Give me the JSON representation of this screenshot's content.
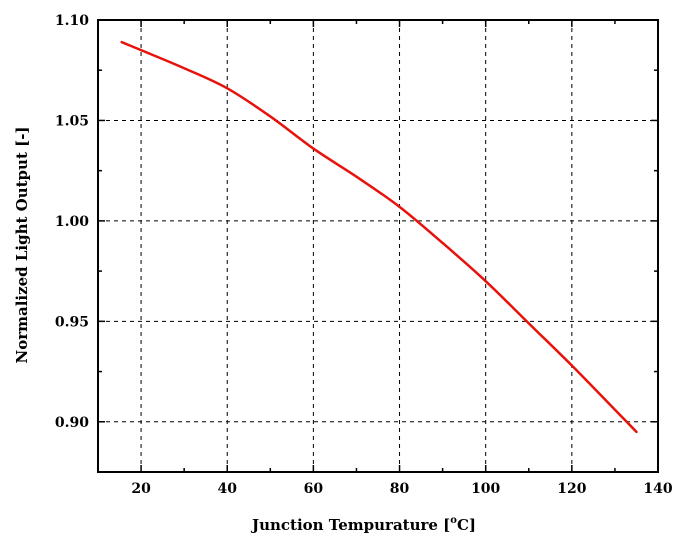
{
  "chart_data": {
    "type": "line",
    "xlabel": "Junction Tempurature [°C]",
    "xlabel_parts": {
      "main": "Junction Tempurature [",
      "deg": "o",
      "unit": "C]"
    },
    "ylabel": "Normalized Light Output [-]",
    "xlim": [
      10,
      140
    ],
    "ylim": [
      0.875,
      1.1
    ],
    "x_ticks": [
      20,
      40,
      60,
      80,
      100,
      120,
      140
    ],
    "x_tick_labels": [
      "20",
      "40",
      "60",
      "80",
      "100",
      "120",
      "140"
    ],
    "y_ticks": [
      0.9,
      0.95,
      1.0,
      1.05,
      1.1
    ],
    "y_tick_labels": [
      "0.90",
      "0.95",
      "1.00",
      "1.05",
      "1.10"
    ],
    "x_minor_ticks": [
      10,
      30,
      50,
      70,
      90,
      110,
      130
    ],
    "y_minor_ticks": [
      0.875,
      0.925,
      0.975,
      1.025,
      1.075
    ],
    "grid": true,
    "series": [
      {
        "color": "#e8120c",
        "x": [
          15.5,
          20,
          30,
          40,
          50,
          60,
          70,
          80,
          90,
          100,
          110,
          120,
          130,
          135
        ],
        "y": [
          1.089,
          1.085,
          1.076,
          1.066,
          1.052,
          1.036,
          1.022,
          1.007,
          0.989,
          0.97,
          0.949,
          0.928,
          0.906,
          0.895
        ]
      }
    ]
  }
}
